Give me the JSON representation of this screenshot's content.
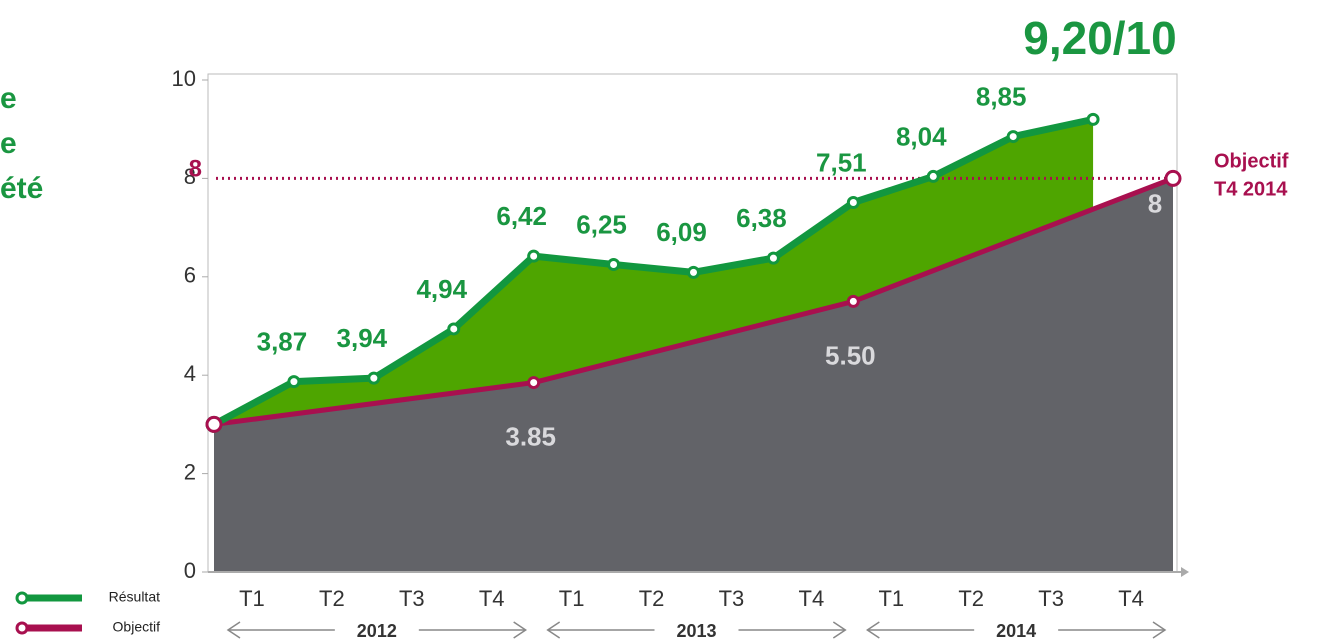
{
  "chart_data": {
    "type": "area",
    "title": "9,20/10",
    "side_text": [
      "e",
      "e",
      "été"
    ],
    "categories": [
      "T1",
      "T2",
      "T3",
      "T4",
      "T1",
      "T2",
      "T3",
      "T4",
      "T1",
      "T2",
      "T3",
      "T4"
    ],
    "years": [
      "2012",
      "2013",
      "2014"
    ],
    "xlim": [
      0,
      12
    ],
    "ylim": [
      0,
      10
    ],
    "yticks": [
      0,
      2,
      4,
      6,
      8,
      10
    ],
    "target": {
      "value": 8,
      "text": [
        "Objectif",
        "T4 2014"
      ],
      "color": "#a8104f"
    },
    "series": [
      {
        "name": "Résultat",
        "color": "#12973f",
        "fill": "#4ea500",
        "x": [
          0,
          1,
          2,
          3,
          4,
          5,
          6,
          7,
          8,
          9,
          10,
          11
        ],
        "values": [
          3,
          3.87,
          3.94,
          4.94,
          6.42,
          6.25,
          6.09,
          6.38,
          7.51,
          8.04,
          8.85,
          9.2
        ],
        "value_labels": [
          null,
          "3,87",
          "3,94",
          "4,94",
          "6,42",
          "6,25",
          "6,09",
          "6,38",
          "7,51",
          "8,04",
          "8,85",
          null
        ]
      },
      {
        "name": "Objectif",
        "color": "#a8104f",
        "fill": "#626368",
        "x": [
          0,
          4,
          8,
          12
        ],
        "values": [
          3,
          3.85,
          5.5,
          8
        ],
        "value_labels": [
          null,
          "3.85",
          "5.50",
          "8"
        ]
      }
    ]
  }
}
